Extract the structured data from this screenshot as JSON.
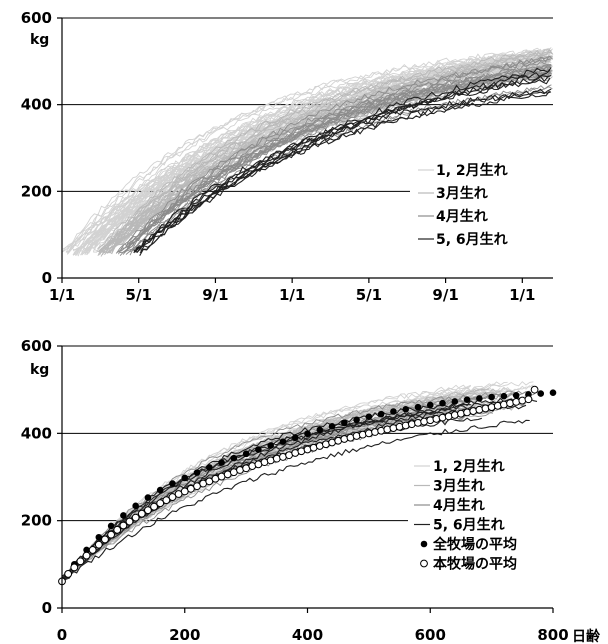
{
  "chart_data": [
    {
      "type": "line",
      "ylabel": "kg",
      "ylim": [
        0,
        600
      ],
      "yticks": [
        0,
        200,
        400,
        600
      ],
      "x_tick_labels": [
        "1/1",
        "5/1",
        "9/1",
        "1/1",
        "5/1",
        "9/1",
        "1/1"
      ],
      "xlim_days": [
        0,
        840
      ],
      "grid": "horizontal",
      "legend_position": "right",
      "series": [
        {
          "name": "1, 2月生れ",
          "color": "#d2d2d2",
          "count": 40,
          "birth_day_range": [
            0,
            58
          ],
          "start_weight": 55,
          "end_weight_range": [
            470,
            530
          ]
        },
        {
          "name": "3月生れ",
          "color": "#b9b9b9",
          "count": 30,
          "birth_day_range": [
            60,
            88
          ],
          "start_weight": 55,
          "end_weight_range": [
            460,
            525
          ]
        },
        {
          "name": "4月生れ",
          "color": "#8c8c8c",
          "count": 15,
          "birth_day_range": [
            92,
            118
          ],
          "start_weight": 55,
          "end_weight_range": [
            440,
            515
          ]
        },
        {
          "name": "5, 6月生れ",
          "color": "#222222",
          "count": 8,
          "birth_day_range": [
            122,
            138
          ],
          "start_weight": 55,
          "end_weight_range": [
            420,
            500
          ]
        }
      ]
    },
    {
      "type": "line",
      "xlabel": "日齢",
      "ylabel": "kg",
      "xlim": [
        0,
        800
      ],
      "ylim": [
        0,
        600
      ],
      "xticks": [
        0,
        200,
        400,
        600,
        800
      ],
      "yticks": [
        0,
        200,
        400,
        600
      ],
      "grid": "horizontal",
      "legend_position": "right",
      "series": [
        {
          "name": "1, 2月生れ",
          "color": "#d2d2d2",
          "count": 30,
          "start_weight": 60,
          "end_weight_range": [
            475,
            530
          ]
        },
        {
          "name": "3月生れ",
          "color": "#b9b9b9",
          "count": 18,
          "start_weight": 60,
          "end_weight_range": [
            460,
            520
          ]
        },
        {
          "name": "4月生れ",
          "color": "#8c8c8c",
          "count": 10,
          "start_weight": 60,
          "end_weight_range": [
            450,
            510
          ]
        },
        {
          "name": "5, 6月生れ",
          "color": "#222222",
          "count": 8,
          "start_weight": 60,
          "end_weight_range": [
            430,
            490
          ]
        },
        {
          "name": "全牧場の平均",
          "marker": "filled-circle",
          "x": [
            0,
            20,
            40,
            60,
            80,
            100,
            120,
            140,
            160,
            180,
            200,
            220,
            240,
            260,
            280,
            300,
            320,
            340,
            360,
            380,
            400,
            420,
            440,
            460,
            480,
            500,
            520,
            540,
            560,
            580,
            600,
            620,
            640,
            660,
            680,
            700,
            720,
            740,
            760,
            780,
            800
          ],
          "y": [
            62,
            100,
            133,
            162,
            188,
            212,
            234,
            253,
            270,
            285,
            298,
            310,
            322,
            333,
            343,
            353,
            363,
            372,
            381,
            390,
            399,
            408,
            416,
            424,
            431,
            438,
            444,
            450,
            455,
            460,
            465,
            469,
            473,
            477,
            480,
            483,
            485,
            487,
            489,
            491,
            493
          ]
        },
        {
          "name": "本牧場の平均",
          "marker": "open-circle",
          "x": [
            0,
            10,
            20,
            30,
            40,
            50,
            60,
            70,
            80,
            90,
            100,
            110,
            120,
            130,
            140,
            150,
            160,
            170,
            180,
            190,
            200,
            210,
            220,
            230,
            240,
            250,
            260,
            270,
            280,
            290,
            300,
            310,
            320,
            330,
            340,
            350,
            360,
            370,
            380,
            390,
            400,
            410,
            420,
            430,
            440,
            450,
            460,
            470,
            480,
            490,
            500,
            510,
            520,
            530,
            540,
            550,
            560,
            570,
            580,
            590,
            600,
            610,
            620,
            630,
            640,
            650,
            660,
            670,
            680,
            690,
            700,
            710,
            720,
            730,
            740,
            750,
            760,
            770
          ],
          "y": [
            61,
            78,
            93,
            107,
            120,
            133,
            145,
            157,
            168,
            179,
            189,
            198,
            207,
            216,
            224,
            232,
            240,
            247,
            254,
            261,
            267,
            273,
            279,
            285,
            290,
            296,
            301,
            306,
            311,
            316,
            320,
            325,
            329,
            334,
            338,
            342,
            346,
            350,
            355,
            359,
            363,
            367,
            371,
            375,
            379,
            383,
            387,
            390,
            394,
            397,
            400,
            403,
            406,
            409,
            412,
            415,
            418,
            421,
            424,
            427,
            430,
            433,
            436,
            439,
            442,
            445,
            448,
            451,
            454,
            457,
            460,
            463,
            466,
            469,
            472,
            475,
            478,
            500
          ]
        }
      ]
    }
  ]
}
